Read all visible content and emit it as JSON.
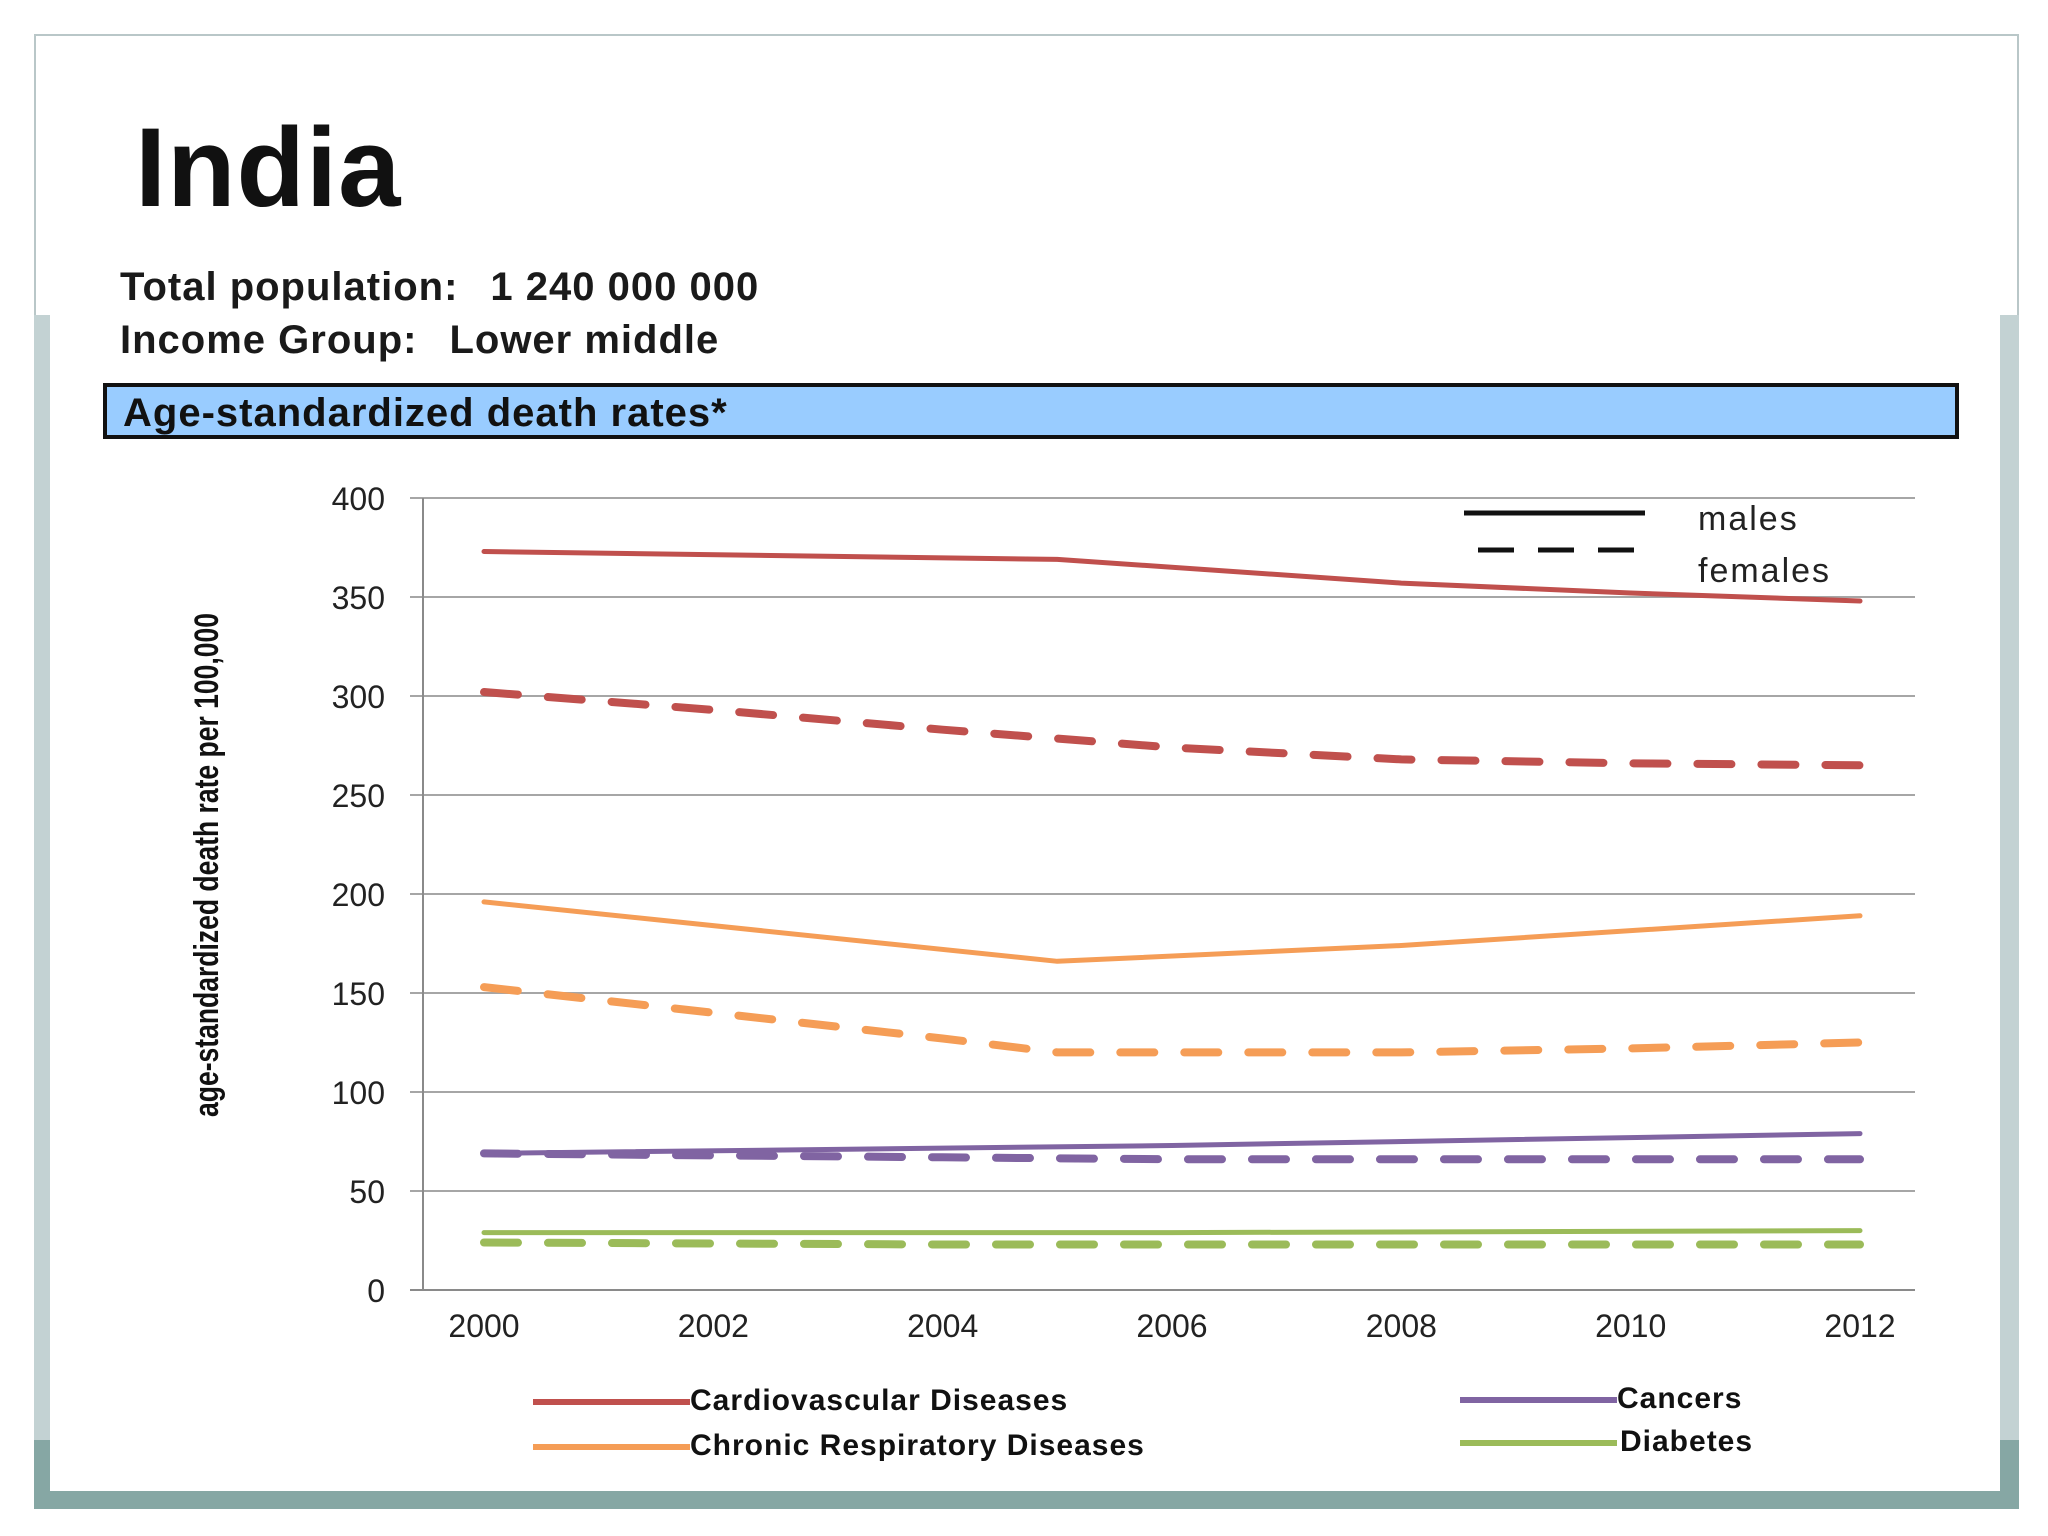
{
  "slide": {
    "title": "India",
    "population_label": "Total population:",
    "population_value": "1 240 000 000",
    "income_label": "Income Group:",
    "income_value": "Lower middle",
    "banner": "Age-standardized death rates*"
  },
  "colors": {
    "cardiovascular": "#c0504d",
    "respiratory": "#f59d56",
    "cancers": "#8064a2",
    "diabetes": "#9bbb59",
    "banner_bg": "#99ccff"
  },
  "chart_data": {
    "type": "line",
    "ylabel": "age-standardized death rate per 100,000",
    "xlabel": "",
    "ylim": [
      0,
      400
    ],
    "yticks": [
      0,
      50,
      100,
      150,
      200,
      250,
      300,
      350,
      400
    ],
    "xlim": [
      2000,
      2012
    ],
    "xticks": [
      2000,
      2002,
      2004,
      2006,
      2008,
      2010,
      2012
    ],
    "grid": true,
    "line_style_legend": [
      {
        "label": "males",
        "style": "solid"
      },
      {
        "label": "females",
        "style": "dashed"
      }
    ],
    "color_legend": [
      {
        "label": "Cardiovascular Diseases",
        "color": "#c0504d"
      },
      {
        "label": "Chronic Respiratory Diseases",
        "color": "#f59d56"
      },
      {
        "label": "Cancers",
        "color": "#8064a2"
      },
      {
        "label": "Diabetes",
        "color": "#9bbb59"
      }
    ],
    "series": [
      {
        "disease": "Cardiovascular Diseases",
        "sex": "males",
        "style": "solid",
        "color": "#c0504d",
        "x": [
          2000,
          2005,
          2008,
          2010,
          2012
        ],
        "values": [
          373,
          369,
          357,
          352,
          348
        ]
      },
      {
        "disease": "Cardiovascular Diseases",
        "sex": "females",
        "style": "dashed",
        "color": "#c0504d",
        "x": [
          2000,
          2002,
          2004,
          2006,
          2008,
          2010,
          2012
        ],
        "values": [
          302,
          293,
          283,
          274,
          268,
          266,
          265
        ]
      },
      {
        "disease": "Chronic Respiratory Diseases",
        "sex": "males",
        "style": "solid",
        "color": "#f59d56",
        "x": [
          2000,
          2005,
          2008,
          2012
        ],
        "values": [
          196,
          166,
          174,
          189
        ]
      },
      {
        "disease": "Chronic Respiratory Diseases",
        "sex": "females",
        "style": "dashed",
        "color": "#f59d56",
        "x": [
          2000,
          2002,
          2004,
          2005,
          2008,
          2010,
          2012
        ],
        "values": [
          153,
          140,
          127,
          120,
          120,
          122,
          125
        ]
      },
      {
        "disease": "Cancers",
        "sex": "males",
        "style": "solid",
        "color": "#8064a2",
        "x": [
          2000,
          2006,
          2012
        ],
        "values": [
          69,
          73,
          79
        ]
      },
      {
        "disease": "Cancers",
        "sex": "females",
        "style": "dashed",
        "color": "#8064a2",
        "x": [
          2000,
          2002,
          2004,
          2006,
          2008,
          2010,
          2012
        ],
        "values": [
          69,
          68,
          67,
          66,
          66,
          66,
          66
        ]
      },
      {
        "disease": "Diabetes",
        "sex": "males",
        "style": "solid",
        "color": "#9bbb59",
        "x": [
          2000,
          2006,
          2012
        ],
        "values": [
          29,
          29,
          30
        ]
      },
      {
        "disease": "Diabetes",
        "sex": "females",
        "style": "dashed",
        "color": "#9bbb59",
        "x": [
          2000,
          2004,
          2008,
          2012
        ],
        "values": [
          24,
          23,
          23,
          23
        ]
      }
    ]
  }
}
